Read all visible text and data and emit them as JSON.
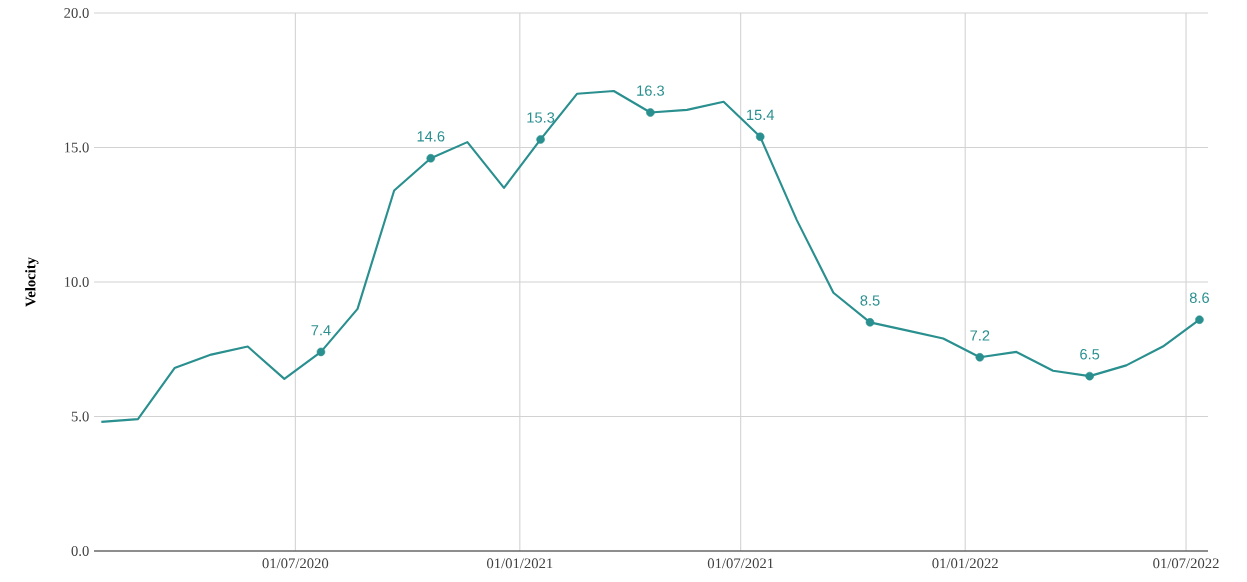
{
  "chart_data": {
    "type": "line",
    "ylabel": "Velocity",
    "x": [
      "2020-01-24",
      "2020-02-23",
      "2020-03-24",
      "2020-04-23",
      "2020-05-23",
      "2020-06-22",
      "2020-07-22",
      "2020-08-21",
      "2020-09-20",
      "2020-10-20",
      "2020-11-19",
      "2020-12-19",
      "2021-01-18",
      "2021-02-17",
      "2021-03-19",
      "2021-04-18",
      "2021-05-18",
      "2021-06-17",
      "2021-07-17",
      "2021-08-16",
      "2021-09-15",
      "2021-10-15",
      "2021-11-14",
      "2021-12-14",
      "2022-01-13",
      "2022-02-12",
      "2022-03-14",
      "2022-04-13",
      "2022-05-13",
      "2022-06-12",
      "2022-07-12"
    ],
    "values": [
      4.8,
      4.9,
      6.8,
      7.3,
      7.6,
      6.4,
      7.4,
      9.0,
      13.4,
      14.6,
      15.2,
      13.5,
      15.3,
      17.0,
      17.1,
      16.3,
      16.4,
      16.7,
      15.4,
      12.3,
      9.6,
      8.5,
      8.2,
      7.9,
      7.2,
      7.4,
      6.7,
      6.5,
      6.9,
      7.6,
      8.6
    ],
    "value_labels": [
      null,
      null,
      null,
      null,
      null,
      null,
      "7.4",
      null,
      null,
      "14.6",
      null,
      null,
      "15.3",
      null,
      null,
      "16.3",
      null,
      null,
      "15.4",
      null,
      null,
      "8.5",
      null,
      null,
      "7.2",
      null,
      null,
      "6.5",
      null,
      null,
      "8.6"
    ],
    "color": "#2a8f8f",
    "line_style": "solid",
    "grid": true,
    "xlim": [
      "2020-01-18",
      "2022-07-19"
    ],
    "xticks": [
      {
        "value": "2020-07-01",
        "label": "01/07/2020"
      },
      {
        "value": "2021-01-01",
        "label": "01/01/2021"
      },
      {
        "value": "2021-07-01",
        "label": "01/07/2021"
      },
      {
        "value": "2022-01-01",
        "label": "01/01/2022"
      },
      {
        "value": "2022-07-01",
        "label": "01/07/2022"
      }
    ],
    "ylim": [
      0,
      20
    ],
    "yticks": [
      {
        "value": 0,
        "label": "0.0"
      },
      {
        "value": 5,
        "label": "5.0"
      },
      {
        "value": 10,
        "label": "10.0"
      },
      {
        "value": 15,
        "label": "15.0"
      },
      {
        "value": 20,
        "label": "20.0"
      }
    ]
  }
}
